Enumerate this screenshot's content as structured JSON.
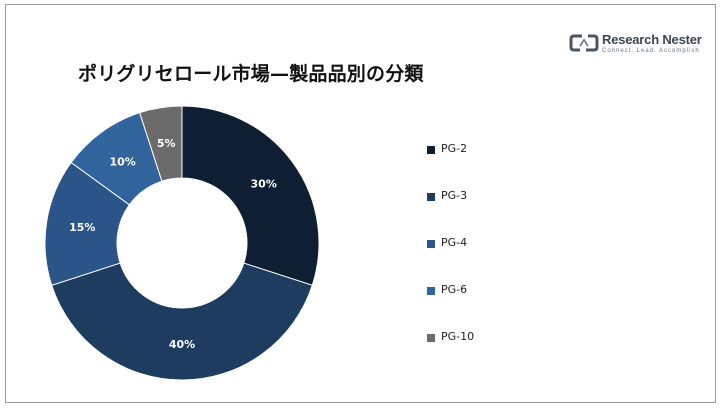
{
  "logo": {
    "name": "Research Nester",
    "tagline": "Connect. Lead. Accomplish"
  },
  "chart_data": {
    "type": "pie",
    "title": "ポリグリセロール市場—製品品別の分類",
    "donut": true,
    "legend_position": "right",
    "categories": [
      "PG-2",
      "PG-3",
      "PG-4",
      "PG-6",
      "PG-10"
    ],
    "values": [
      30,
      40,
      15,
      10,
      5
    ],
    "value_labels": [
      "30%",
      "40%",
      "15%",
      "10%",
      "5%"
    ],
    "colors": [
      "#0e1f33",
      "#1e3c5f",
      "#2b5488",
      "#31649d",
      "#6b6b6b"
    ]
  }
}
